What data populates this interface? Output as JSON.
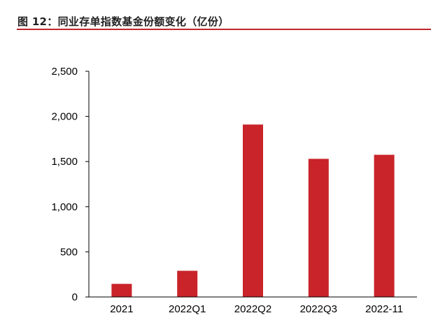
{
  "header": {
    "title": "图 12：同业存单指数基金份额变化（亿份）"
  },
  "colors": {
    "bar": "#c8242a",
    "rule": "#c0262a",
    "axis": "#000000"
  },
  "chart_data": {
    "type": "bar",
    "title": "图 12：同业存单指数基金份额变化（亿份）",
    "categories": [
      "2021",
      "2022Q1",
      "2022Q2",
      "2022Q3",
      "2022-11"
    ],
    "values": [
      145,
      290,
      1910,
      1530,
      1575
    ],
    "ylim": [
      0,
      2500
    ],
    "yticks": [
      0,
      500,
      1000,
      1500,
      2000,
      2500
    ],
    "ytick_labels": [
      "0",
      "500",
      "1,000",
      "1,500",
      "2,000",
      "2,500"
    ],
    "xlabel": "",
    "ylabel": "",
    "grid": false,
    "legend": "none"
  }
}
